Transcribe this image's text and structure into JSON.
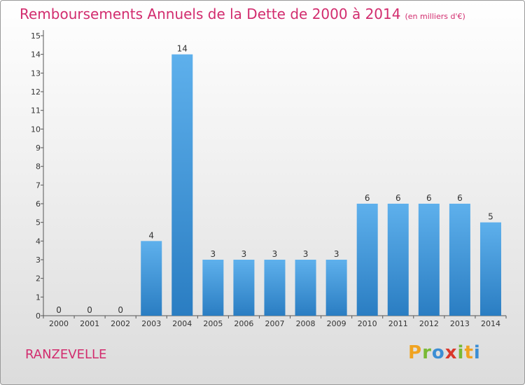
{
  "title": "Remboursements Annuels de la Dette de 2000 à 2014",
  "subtitle": "(en milliers d'€)",
  "place": "RANZEVELLE",
  "logo": {
    "p": "P",
    "r": "r",
    "o": "o",
    "x": "x",
    "i1": "i",
    "t": "t",
    "i2": "i"
  },
  "colors": {
    "title": "#d22c6e",
    "bar": "#3d93d9"
  },
  "chart_data": {
    "type": "bar",
    "title": "Remboursements Annuels de la Dette de 2000 à 2014",
    "subtitle": "(en milliers d'€)",
    "categories": [
      "2000",
      "2001",
      "2002",
      "2003",
      "2004",
      "2005",
      "2006",
      "2007",
      "2008",
      "2009",
      "2010",
      "2011",
      "2012",
      "2013",
      "2014"
    ],
    "values": [
      0,
      0,
      0,
      4,
      14,
      3,
      3,
      3,
      3,
      3,
      6,
      6,
      6,
      6,
      5
    ],
    "ylim": [
      0,
      15
    ],
    "yticks": [
      0,
      1,
      2,
      3,
      4,
      5,
      6,
      7,
      8,
      9,
      10,
      11,
      12,
      13,
      14,
      15
    ],
    "grid": false,
    "data_labels": true
  }
}
